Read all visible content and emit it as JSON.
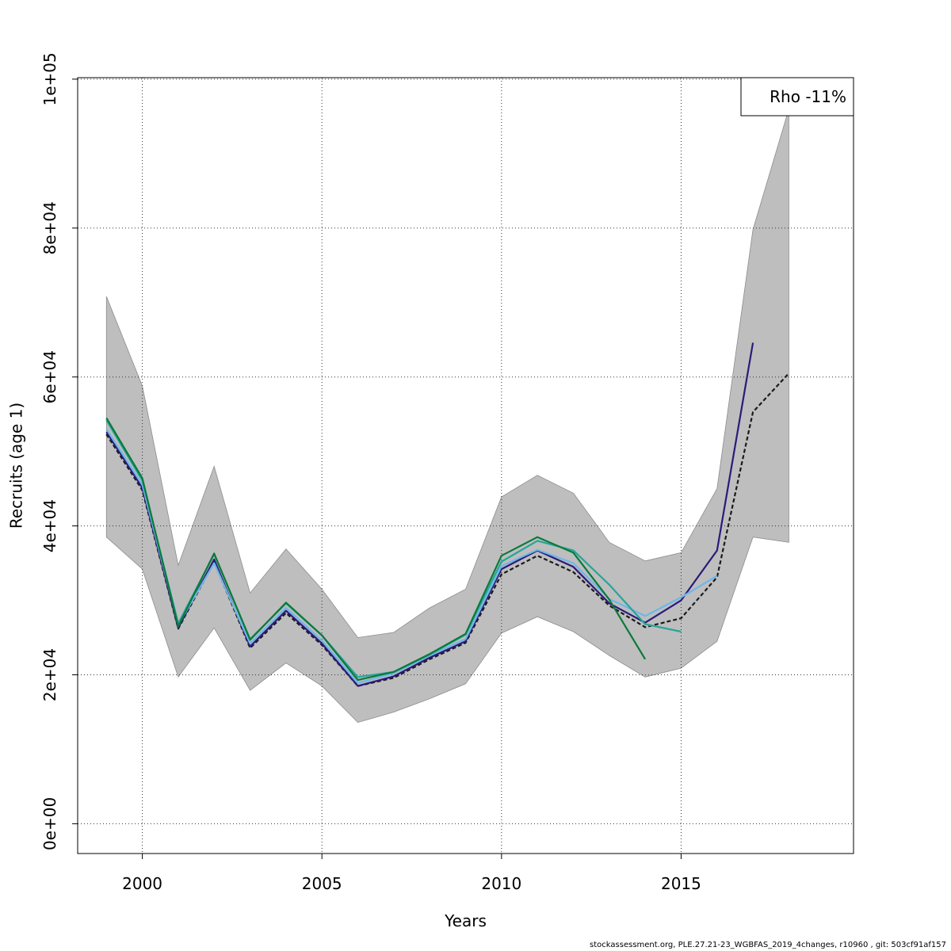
{
  "footer_text": "stockassessment.org, PLE.27.21-23_WGBFAS_2019_4changes, r10960 , git: 503cf91af157",
  "chart_data": {
    "type": "line",
    "title": "",
    "xlabel": "Years",
    "ylabel": "Recruits (age 1)",
    "xlim": [
      1998.2,
      2019.8
    ],
    "ylim": [
      -4000,
      100200
    ],
    "x_ticks": [
      2000,
      2005,
      2010,
      2015
    ],
    "x_tick_labels": [
      "2000",
      "2005",
      "2010",
      "2015"
    ],
    "y_ticks": [
      0,
      20000,
      40000,
      60000,
      80000,
      100000
    ],
    "y_tick_labels": [
      "0e+00",
      "2e+04",
      "4e+04",
      "6e+04",
      "8e+04",
      "1e+05"
    ],
    "grid": true,
    "legend": {
      "position": "top-right",
      "text": "Rho -11%"
    },
    "band": {
      "x": [
        1999,
        2000,
        2001,
        2002,
        2003,
        2004,
        2005,
        2006,
        2007,
        2008,
        2009,
        2010,
        2011,
        2012,
        2013,
        2014,
        2015,
        2016,
        2017,
        2018
      ],
      "upper": [
        70800,
        58800,
        34700,
        48000,
        31000,
        36900,
        31500,
        25000,
        25700,
        29000,
        31500,
        43900,
        46800,
        44400,
        37800,
        35300,
        36400,
        45000,
        79800,
        96000
      ],
      "lower": [
        38500,
        34200,
        19700,
        26300,
        17900,
        21600,
        18500,
        13600,
        15000,
        16800,
        18800,
        25600,
        27800,
        25800,
        22600,
        19700,
        20900,
        24500,
        38500,
        37800
      ],
      "color": "#bebebe"
    },
    "series": [
      {
        "color": "#1a1a1a",
        "dashed": true,
        "x": [
          1999,
          2000,
          2001,
          2002,
          2003,
          2004,
          2005,
          2006,
          2007,
          2008,
          2009,
          2010,
          2011,
          2012,
          2013,
          2014,
          2015,
          2016,
          2017,
          2018
        ],
        "y": [
          52300,
          44800,
          26200,
          35200,
          23600,
          28300,
          24000,
          18500,
          19600,
          22100,
          24300,
          33500,
          36000,
          33800,
          29300,
          26400,
          27600,
          33100,
          55300,
          60500
        ]
      },
      {
        "color": "#2b1a7a",
        "x": [
          1999,
          2000,
          2001,
          2002,
          2003,
          2004,
          2005,
          2006,
          2007,
          2008,
          2009,
          2010,
          2011,
          2012,
          2013,
          2014,
          2015,
          2016,
          2017
        ],
        "y": [
          52600,
          45100,
          26300,
          35500,
          23800,
          28600,
          24200,
          18500,
          19800,
          22300,
          24500,
          34200,
          36700,
          34500,
          29600,
          27000,
          30000,
          36700,
          64600
        ]
      },
      {
        "color": "#6fb6e8",
        "x": [
          1999,
          2000,
          2001,
          2002,
          2003,
          2004,
          2005,
          2006,
          2007,
          2008,
          2009,
          2010,
          2011,
          2012,
          2013,
          2014,
          2015,
          2016
        ],
        "y": [
          53000,
          45500,
          26700,
          35000,
          24200,
          29000,
          24600,
          18900,
          20200,
          22600,
          24800,
          34600,
          36800,
          35000,
          30200,
          27900,
          30400,
          33300
        ]
      },
      {
        "color": "#27a59a",
        "x": [
          1999,
          2000,
          2001,
          2002,
          2003,
          2004,
          2005,
          2006,
          2007,
          2008,
          2009,
          2010,
          2011,
          2012,
          2013,
          2014,
          2015
        ],
        "y": [
          54200,
          46100,
          26900,
          36200,
          24800,
          29600,
          25300,
          19700,
          20400,
          22700,
          25400,
          35200,
          38000,
          36700,
          32100,
          26800,
          25800
        ]
      },
      {
        "color": "#0a7a3a",
        "x": [
          1999,
          2000,
          2001,
          2002,
          2003,
          2004,
          2005,
          2006,
          2007,
          2008,
          2009,
          2010,
          2011,
          2012,
          2013,
          2014
        ],
        "y": [
          54500,
          46400,
          26500,
          36300,
          24700,
          29700,
          25300,
          19300,
          20400,
          22800,
          25500,
          36000,
          38500,
          36400,
          30100,
          22100
        ]
      }
    ]
  }
}
